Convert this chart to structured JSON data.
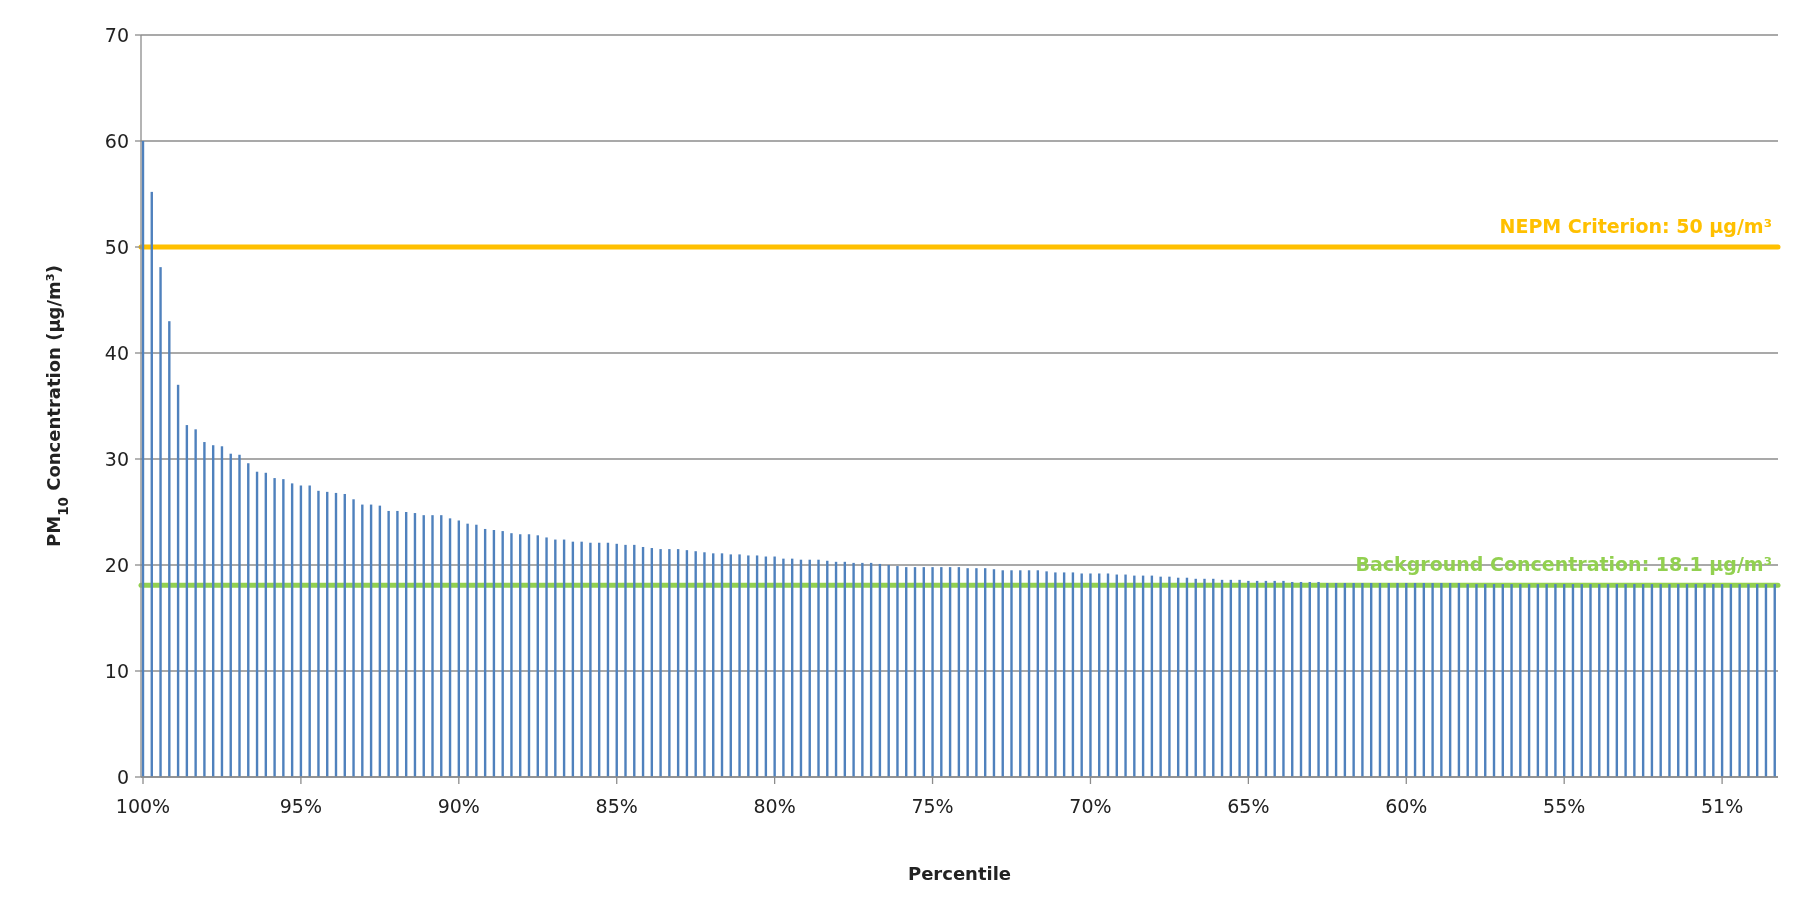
{
  "chart_data": {
    "type": "bar",
    "xlabel": "Percentile",
    "ylabel": "PM$_{10}$ Concentration (µg/m³)",
    "categories": [
      "100%",
      null,
      null,
      null,
      null,
      null,
      null,
      null,
      null,
      null,
      null,
      null,
      null,
      null,
      null,
      null,
      null,
      null,
      "95%",
      null,
      null,
      null,
      null,
      null,
      null,
      null,
      null,
      null,
      null,
      null,
      null,
      null,
      null,
      null,
      null,
      null,
      "90%",
      null,
      null,
      null,
      null,
      null,
      null,
      null,
      null,
      null,
      null,
      null,
      null,
      null,
      null,
      null,
      null,
      null,
      "85%",
      null,
      null,
      null,
      null,
      null,
      null,
      null,
      null,
      null,
      null,
      null,
      null,
      null,
      null,
      null,
      null,
      null,
      "80%",
      null,
      null,
      null,
      null,
      null,
      null,
      null,
      null,
      null,
      null,
      null,
      null,
      null,
      null,
      null,
      null,
      null,
      "75%",
      null,
      null,
      null,
      null,
      null,
      null,
      null,
      null,
      null,
      null,
      null,
      null,
      null,
      null,
      null,
      null,
      null,
      "70%",
      null,
      null,
      null,
      null,
      null,
      null,
      null,
      null,
      null,
      null,
      null,
      null,
      null,
      null,
      null,
      null,
      null,
      "65%",
      null,
      null,
      null,
      null,
      null,
      null,
      null,
      null,
      null,
      null,
      null,
      null,
      null,
      null,
      null,
      null,
      null,
      "60%",
      null,
      null,
      null,
      null,
      null,
      null,
      null,
      null,
      null,
      null,
      null,
      null,
      null,
      null,
      null,
      null,
      null,
      "55%",
      null,
      null,
      null,
      null,
      null,
      null,
      null,
      null,
      null,
      null,
      null,
      null,
      null,
      null,
      null,
      null,
      null,
      "51%",
      null,
      null,
      null,
      null,
      null,
      null
    ],
    "values": [
      60.0,
      55.2,
      48.1,
      43.0,
      37.0,
      33.2,
      32.8,
      31.6,
      31.3,
      31.2,
      30.5,
      30.4,
      29.6,
      28.8,
      28.7,
      28.2,
      28.1,
      27.7,
      27.5,
      27.5,
      27.0,
      26.9,
      26.8,
      26.7,
      26.2,
      25.7,
      25.7,
      25.6,
      25.1,
      25.1,
      25.0,
      24.9,
      24.7,
      24.7,
      24.7,
      24.4,
      24.2,
      23.9,
      23.8,
      23.4,
      23.3,
      23.2,
      23.0,
      22.9,
      22.9,
      22.8,
      22.6,
      22.4,
      22.4,
      22.2,
      22.2,
      22.1,
      22.1,
      22.1,
      22.0,
      21.9,
      21.9,
      21.7,
      21.6,
      21.5,
      21.5,
      21.5,
      21.4,
      21.3,
      21.2,
      21.1,
      21.1,
      21.0,
      21.0,
      20.9,
      20.9,
      20.8,
      20.8,
      20.6,
      20.6,
      20.5,
      20.5,
      20.5,
      20.4,
      20.3,
      20.3,
      20.2,
      20.2,
      20.2,
      20.1,
      20.0,
      19.9,
      19.8,
      19.8,
      19.8,
      19.8,
      19.8,
      19.8,
      19.8,
      19.7,
      19.7,
      19.7,
      19.6,
      19.5,
      19.5,
      19.5,
      19.5,
      19.5,
      19.4,
      19.3,
      19.3,
      19.3,
      19.2,
      19.2,
      19.2,
      19.2,
      19.1,
      19.1,
      19.0,
      19.0,
      19.0,
      18.9,
      18.9,
      18.8,
      18.8,
      18.7,
      18.7,
      18.7,
      18.6,
      18.6,
      18.6,
      18.5,
      18.5,
      18.5,
      18.5,
      18.5,
      18.4,
      18.4,
      18.4,
      18.4,
      18.3,
      18.3,
      18.3,
      18.3,
      18.3,
      18.3,
      18.3,
      18.3,
      18.3,
      18.3,
      18.3,
      18.3,
      18.3,
      18.3,
      18.3,
      18.3,
      18.2,
      18.2,
      18.2,
      18.2,
      18.2,
      18.2,
      18.2,
      18.2,
      18.2,
      18.2,
      18.2,
      18.2,
      18.2,
      18.2,
      18.2,
      18.2,
      18.2,
      18.2,
      18.2,
      18.2,
      18.2,
      18.2,
      18.2,
      18.2,
      18.2,
      18.2,
      18.2,
      18.2,
      18.2,
      18.2,
      18.2,
      18.2,
      18.2,
      18.2,
      18.2,
      18.2
    ],
    "color": "#4f81bd",
    "ylim": [
      0,
      70
    ],
    "yticks": [
      0,
      10,
      20,
      30,
      40,
      50,
      60,
      70
    ],
    "grid": "y",
    "ref_lines": [
      {
        "axis": "y",
        "value": 50,
        "label": "NEPM Criterion: 50 µg/m³",
        "color": "#ffc000"
      },
      {
        "axis": "y",
        "value": 18.1,
        "label": "Background Concentration: 18.1 µg/m³",
        "color": "#92d050"
      }
    ]
  }
}
